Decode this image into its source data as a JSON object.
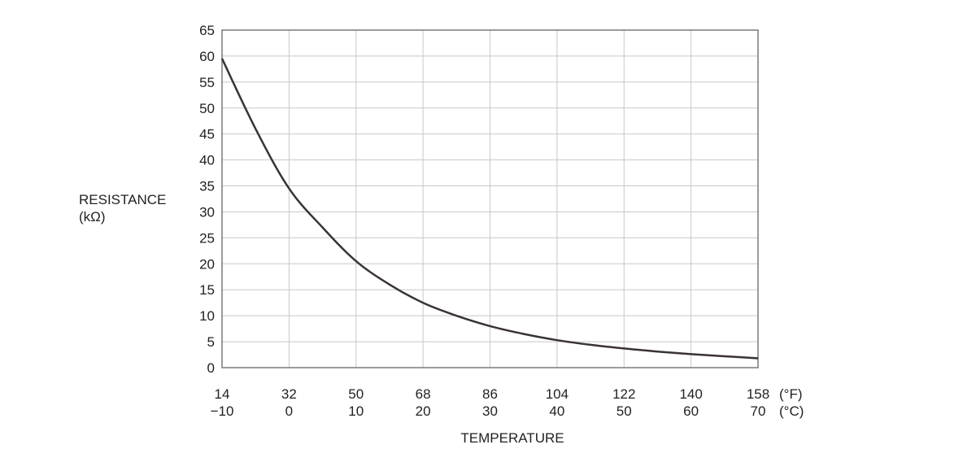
{
  "chart_data": {
    "type": "line",
    "xlabel": "TEMPERATURE",
    "ylabel_line1": "RESISTANCE",
    "ylabel_line2": "(kΩ)",
    "x_unit_primary": "(°F)",
    "x_unit_secondary": "(°C)",
    "x_ticks_f": [
      "14",
      "32",
      "50",
      "68",
      "86",
      "104",
      "122",
      "140",
      "158"
    ],
    "x_ticks_c": [
      "−10",
      "0",
      "10",
      "20",
      "30",
      "40",
      "50",
      "60",
      "70"
    ],
    "xlim": [
      -10,
      70
    ],
    "ylim": [
      0,
      65
    ],
    "y_ticks": [
      "0",
      "5",
      "10",
      "15",
      "20",
      "25",
      "30",
      "35",
      "40",
      "45",
      "50",
      "55",
      "60",
      "65"
    ],
    "grid": true,
    "series": [
      {
        "x": [
          -10,
          -5,
          0,
          5,
          10,
          15,
          20,
          25,
          30,
          35,
          40,
          45,
          50,
          55,
          60,
          65,
          70
        ],
        "y": [
          59.5,
          46,
          34.5,
          27,
          20.5,
          16,
          12.5,
          10,
          8,
          6.5,
          5.3,
          4.4,
          3.7,
          3.1,
          2.6,
          2.2,
          1.8
        ]
      }
    ],
    "colors": {
      "line": "#3a3234",
      "grid": "#c8c8c8",
      "frame": "#7a7a7a"
    }
  }
}
